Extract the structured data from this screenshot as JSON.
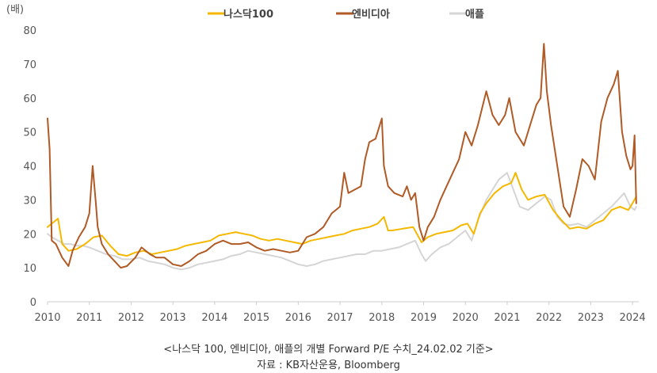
{
  "chart_data": {
    "type": "line",
    "ylabel": "(배)",
    "ylim": [
      0,
      80
    ],
    "yticks": [
      0,
      10,
      20,
      30,
      40,
      50,
      60,
      70,
      80
    ],
    "xlim": [
      2010,
      2024.15
    ],
    "xticks": [
      "2010",
      "2011",
      "2012",
      "2013",
      "2014",
      "2015",
      "2016",
      "2017",
      "2018",
      "2019",
      "2020",
      "2021",
      "2022",
      "2023",
      "2024"
    ],
    "legend_position": "top-center",
    "grid": false,
    "series": [
      {
        "name": "나스닥100",
        "color": "#f5b800",
        "x": [
          2010.0,
          2010.1,
          2010.25,
          2010.35,
          2010.5,
          2010.7,
          2010.9,
          2011.1,
          2011.3,
          2011.5,
          2011.7,
          2011.9,
          2012.1,
          2012.3,
          2012.5,
          2012.7,
          2012.9,
          2013.1,
          2013.3,
          2013.5,
          2013.7,
          2013.9,
          2014.1,
          2014.3,
          2014.5,
          2014.7,
          2014.9,
          2015.1,
          2015.3,
          2015.5,
          2015.7,
          2015.9,
          2016.1,
          2016.3,
          2016.5,
          2016.7,
          2016.9,
          2017.1,
          2017.3,
          2017.5,
          2017.7,
          2017.9,
          2018.05,
          2018.15,
          2018.25,
          2018.5,
          2018.75,
          2018.95,
          2019.1,
          2019.3,
          2019.5,
          2019.7,
          2019.9,
          2020.05,
          2020.2,
          2020.35,
          2020.5,
          2020.7,
          2020.9,
          2021.1,
          2021.2,
          2021.35,
          2021.5,
          2021.7,
          2021.9,
          2022.1,
          2022.3,
          2022.5,
          2022.7,
          2022.9,
          2023.1,
          2023.3,
          2023.5,
          2023.7,
          2023.9,
          2024.0,
          2024.09
        ],
        "values": [
          22,
          23,
          24.5,
          17,
          15,
          15.5,
          17,
          19,
          19.5,
          16.5,
          14,
          13.5,
          14.5,
          15,
          14,
          14.5,
          15,
          15.5,
          16.5,
          17,
          17.5,
          18,
          19.5,
          20,
          20.5,
          20,
          19.5,
          18.5,
          18,
          18.5,
          18,
          17.5,
          17,
          18,
          18.5,
          19,
          19.5,
          20,
          21,
          21.5,
          22,
          23,
          25,
          21,
          21,
          21.5,
          22,
          17.5,
          19,
          20,
          20.5,
          21,
          22.5,
          23,
          20,
          26,
          29,
          32,
          34,
          35,
          38,
          33,
          30,
          31,
          31.5,
          27,
          24,
          21.5,
          22,
          21.5,
          23,
          24,
          27,
          28,
          27,
          29,
          31
        ]
      },
      {
        "name": "엔비디아",
        "color": "#b05a26",
        "x": [
          2010.0,
          2010.05,
          2010.1,
          2010.2,
          2010.35,
          2010.5,
          2010.6,
          2010.75,
          2010.9,
          2011.0,
          2011.08,
          2011.15,
          2011.2,
          2011.3,
          2011.45,
          2011.6,
          2011.75,
          2011.9,
          2012.1,
          2012.25,
          2012.45,
          2012.6,
          2012.8,
          2013.0,
          2013.2,
          2013.4,
          2013.6,
          2013.8,
          2014.0,
          2014.2,
          2014.4,
          2014.6,
          2014.8,
          2015.0,
          2015.2,
          2015.4,
          2015.6,
          2015.8,
          2016.0,
          2016.2,
          2016.4,
          2016.6,
          2016.8,
          2017.0,
          2017.1,
          2017.2,
          2017.35,
          2017.5,
          2017.6,
          2017.7,
          2017.85,
          2018.0,
          2018.05,
          2018.15,
          2018.3,
          2018.5,
          2018.6,
          2018.7,
          2018.8,
          2018.9,
          2019.0,
          2019.1,
          2019.25,
          2019.4,
          2019.55,
          2019.7,
          2019.85,
          2020.0,
          2020.15,
          2020.3,
          2020.5,
          2020.65,
          2020.8,
          2020.95,
          2021.05,
          2021.2,
          2021.4,
          2021.55,
          2021.7,
          2021.8,
          2021.88,
          2021.95,
          2022.05,
          2022.2,
          2022.35,
          2022.5,
          2022.65,
          2022.8,
          2022.95,
          2023.1,
          2023.25,
          2023.4,
          2023.55,
          2023.65,
          2023.75,
          2023.85,
          2023.95,
          2024.0,
          2024.05,
          2024.09
        ],
        "values": [
          54,
          45,
          18,
          17,
          13,
          10.5,
          15,
          19,
          22,
          26,
          40,
          30,
          22,
          17,
          14,
          12,
          10,
          10.5,
          13,
          16,
          14,
          13,
          13,
          11,
          10.5,
          12,
          14,
          15,
          17,
          18,
          17,
          17,
          17.5,
          16,
          15,
          15.5,
          15,
          14.5,
          15,
          19,
          20,
          22,
          26,
          28,
          38,
          32,
          33,
          34,
          42,
          47,
          48,
          54,
          40,
          34,
          32,
          31,
          34,
          30,
          32,
          22,
          18,
          22,
          25,
          30,
          34,
          38,
          42,
          50,
          46,
          52,
          62,
          55,
          52,
          55,
          60,
          50,
          46,
          52,
          58,
          60,
          76,
          62,
          52,
          40,
          28,
          25,
          33,
          42,
          40,
          36,
          53,
          60,
          64,
          68,
          50,
          43,
          39,
          40,
          49,
          29
        ]
      },
      {
        "name": "애플",
        "color": "#d5d5d5",
        "x": [
          2010.0,
          2010.1,
          2010.25,
          2010.4,
          2010.55,
          2010.7,
          2010.85,
          2011.0,
          2011.2,
          2011.4,
          2011.6,
          2011.8,
          2012.0,
          2012.2,
          2012.4,
          2012.6,
          2012.8,
          2013.0,
          2013.2,
          2013.4,
          2013.6,
          2013.8,
          2014.0,
          2014.2,
          2014.4,
          2014.6,
          2014.8,
          2015.0,
          2015.2,
          2015.4,
          2015.6,
          2015.8,
          2016.0,
          2016.2,
          2016.4,
          2016.6,
          2016.8,
          2017.0,
          2017.2,
          2017.4,
          2017.6,
          2017.8,
          2018.0,
          2018.2,
          2018.4,
          2018.6,
          2018.8,
          2018.95,
          2019.05,
          2019.2,
          2019.4,
          2019.6,
          2019.8,
          2020.0,
          2020.15,
          2020.3,
          2020.5,
          2020.65,
          2020.8,
          2021.0,
          2021.15,
          2021.3,
          2021.5,
          2021.7,
          2021.9,
          2022.05,
          2022.2,
          2022.35,
          2022.5,
          2022.7,
          2022.9,
          2023.1,
          2023.3,
          2023.5,
          2023.65,
          2023.8,
          2023.95,
          2024.05,
          2024.09
        ],
        "values": [
          20,
          19,
          18,
          17,
          17,
          16.5,
          16.5,
          16,
          15,
          14,
          13.5,
          12.5,
          12.5,
          13,
          12,
          11.5,
          11,
          10,
          9.5,
          10,
          11,
          11.5,
          12,
          12.5,
          13.5,
          14,
          15,
          14.5,
          14,
          13.5,
          13,
          12,
          11,
          10.5,
          11,
          12,
          12.5,
          13,
          13.5,
          14,
          14,
          15,
          15,
          15.5,
          16,
          17,
          18,
          14,
          12,
          14,
          16,
          17,
          19,
          21,
          18,
          24,
          30,
          33,
          36,
          38,
          33,
          28,
          27,
          29,
          31,
          30,
          25,
          23,
          22.5,
          23,
          22,
          24,
          26,
          28,
          30,
          32,
          28,
          27,
          28
        ]
      }
    ]
  },
  "caption": {
    "line1": "<나스닥 100, 엔비디아, 애플의 개별 Forward P/E 수치_24.02.02 기준>",
    "line2": "자료 : KB자산운용, Bloomberg"
  }
}
